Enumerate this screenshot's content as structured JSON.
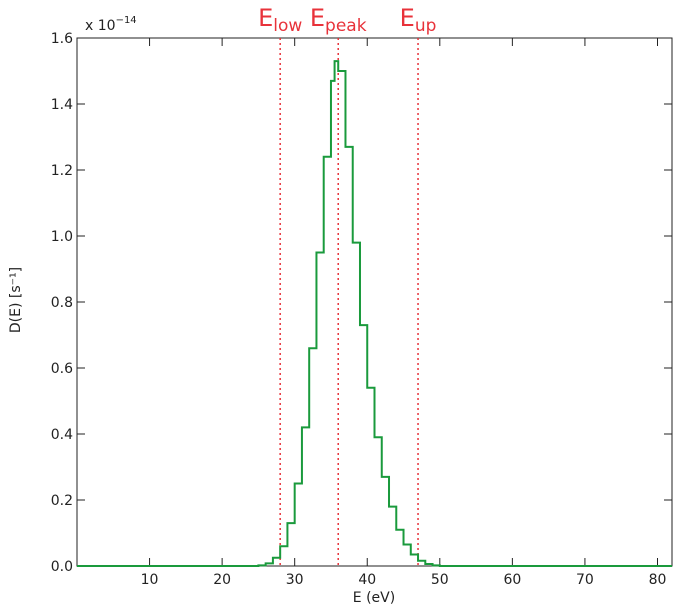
{
  "chart_data": {
    "type": "line",
    "title": "",
    "xlabel": "E (eV)",
    "ylabel": "D(E) [s⁻¹]",
    "y_multiplier": "x 10",
    "y_multiplier_exponent": "−14",
    "xlim": [
      0,
      82
    ],
    "ylim": [
      0,
      1.6
    ],
    "x_ticks": [
      10,
      20,
      30,
      40,
      50,
      60,
      70,
      80
    ],
    "x_tick_labels": [
      "10",
      "20",
      "30",
      "40",
      "50",
      "60",
      "70",
      "80"
    ],
    "y_ticks": [
      0.0,
      0.2,
      0.4,
      0.6,
      0.8,
      1.0,
      1.2,
      1.4,
      1.6
    ],
    "y_tick_labels": [
      "0.0",
      "0.2",
      "0.4",
      "0.6",
      "0.8",
      "1.0",
      "1.2",
      "1.4",
      "1.6"
    ],
    "grid": false,
    "series": [
      {
        "color": "#1a9a3c",
        "style": "step",
        "x": [
          24,
          25,
          26,
          27,
          28,
          29,
          30,
          31,
          32,
          33,
          34,
          35,
          35.5,
          36,
          37,
          38,
          39,
          40,
          41,
          42,
          43,
          44,
          45,
          46,
          47,
          48,
          49,
          50
        ],
        "y": [
          0.0,
          0.002,
          0.008,
          0.025,
          0.06,
          0.13,
          0.25,
          0.42,
          0.66,
          0.95,
          1.24,
          1.47,
          1.53,
          1.5,
          1.27,
          0.98,
          0.73,
          0.54,
          0.39,
          0.27,
          0.18,
          0.11,
          0.065,
          0.035,
          0.016,
          0.006,
          0.002,
          0.0
        ]
      }
    ],
    "markers": [
      {
        "name": "low",
        "base": "E",
        "sub": "low",
        "x": 28,
        "color": "#e8323a"
      },
      {
        "name": "peak",
        "base": "E",
        "sub": "peak",
        "x": 36,
        "color": "#e8323a"
      },
      {
        "name": "up",
        "base": "E",
        "sub": "up",
        "x": 47,
        "color": "#e8323a"
      }
    ]
  }
}
